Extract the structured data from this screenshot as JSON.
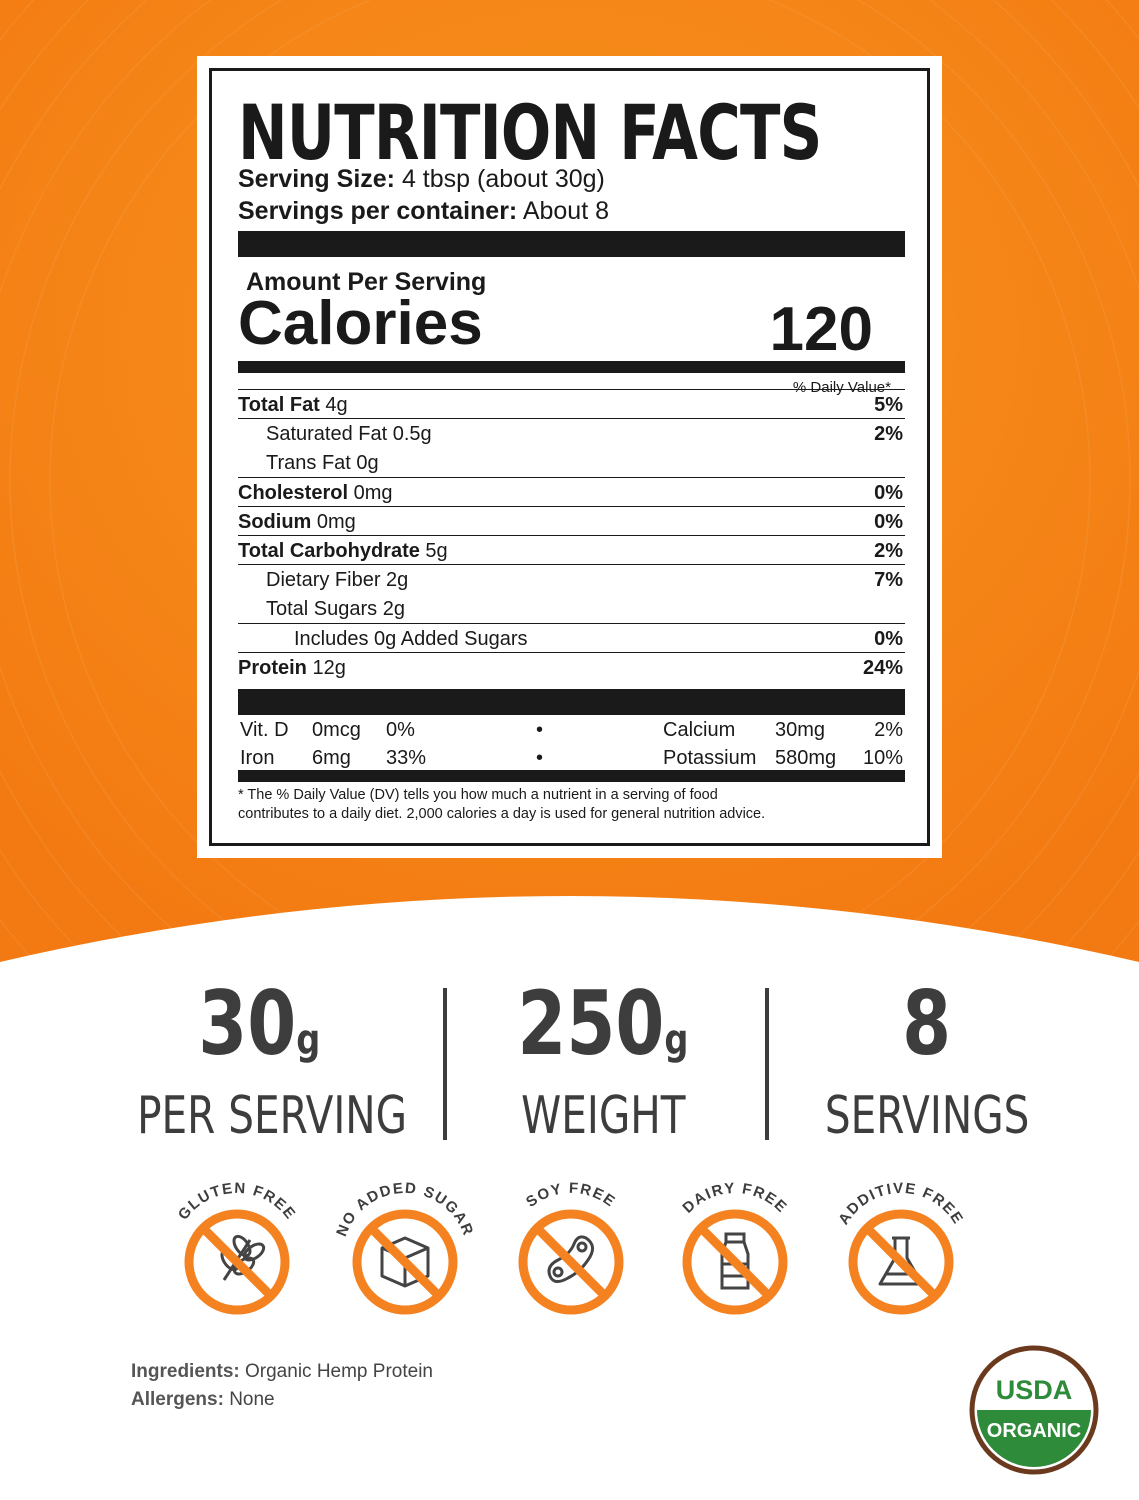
{
  "colors": {
    "orange": "#f58220",
    "orange_light": "#f7941d",
    "dark": "#1a1a1a",
    "gray_text": "#3d3d3d",
    "usda_green": "#2e8b3a",
    "usda_brown": "#6b3a1e"
  },
  "nutrition": {
    "title": "NUTRITION FACTS",
    "serving_size_label": "Serving Size:",
    "serving_size_value": " 4 tbsp (about 30g)",
    "servings_label": "Servings per container:",
    "servings_value": " About 8",
    "amount_per_serving": "Amount Per Serving",
    "calories_label": "Calories",
    "calories_value": "120",
    "dv_header": "% Daily Value*",
    "rows": [
      {
        "bold": "Total Fat",
        "text": " 4g",
        "pct": "5%",
        "indent": 0
      },
      {
        "bold": "",
        "text": "Saturated Fat 0.5g",
        "pct": "2%",
        "indent": 1
      },
      {
        "bold": "",
        "text": "Trans Fat 0g",
        "pct": "",
        "indent": 1
      },
      {
        "bold": "Cholesterol",
        "text": " 0mg",
        "pct": "0%",
        "indent": 0
      },
      {
        "bold": "Sodium",
        "text": " 0mg",
        "pct": "0%",
        "indent": 0
      },
      {
        "bold": "Total Carbohydrate",
        "text": " 5g",
        "pct": "2%",
        "indent": 0
      },
      {
        "bold": "",
        "text": "Dietary Fiber 2g",
        "pct": "7%",
        "indent": 1
      },
      {
        "bold": "",
        "text": "Total Sugars 2g",
        "pct": "",
        "indent": 1
      },
      {
        "bold": "",
        "text": "Includes 0g Added Sugars",
        "pct": "0%",
        "indent": 2
      },
      {
        "bold": "Protein",
        "text": " 12g",
        "pct": "24%",
        "indent": 0
      }
    ],
    "vitamins": [
      {
        "n1": "Vit. D",
        "a1": "0mcg",
        "p1": "0%",
        "dot": "•",
        "n2": "Calcium",
        "a2": "30mg",
        "p2": "2%"
      },
      {
        "n1": "Iron",
        "a1": "6mg",
        "p1": "33%",
        "dot": "•",
        "n2": "Potassium",
        "a2": "580mg",
        "p2": "10%"
      }
    ],
    "footnote_1": "* The % Daily Value (DV) tells you how much a nutrient in a serving of food",
    "footnote_2": "contributes to a daily diet. 2,000 calories a day is used for general nutrition advice."
  },
  "stats": [
    {
      "value": "30",
      "unit": "g",
      "label": "PER SERVING"
    },
    {
      "value": "250",
      "unit": "g",
      "label": "WEIGHT"
    },
    {
      "value": "8",
      "unit": "",
      "label": "SERVINGS"
    }
  ],
  "badges": [
    {
      "label": "GLUTEN FREE",
      "icon": "wheat-icon"
    },
    {
      "label": "NO ADDED SUGAR",
      "icon": "sugar-cube-icon"
    },
    {
      "label": "SOY FREE",
      "icon": "soybean-icon"
    },
    {
      "label": "DAIRY FREE",
      "icon": "milk-bottle-icon"
    },
    {
      "label": "ADDITIVE FREE",
      "icon": "flask-icon"
    }
  ],
  "ingredients_label": "Ingredients:",
  "ingredients_value": " Organic Hemp Protein",
  "allergens_label": "Allergens:",
  "allergens_value": " None",
  "usda": {
    "top": "USDA",
    "bottom": "ORGANIC"
  }
}
